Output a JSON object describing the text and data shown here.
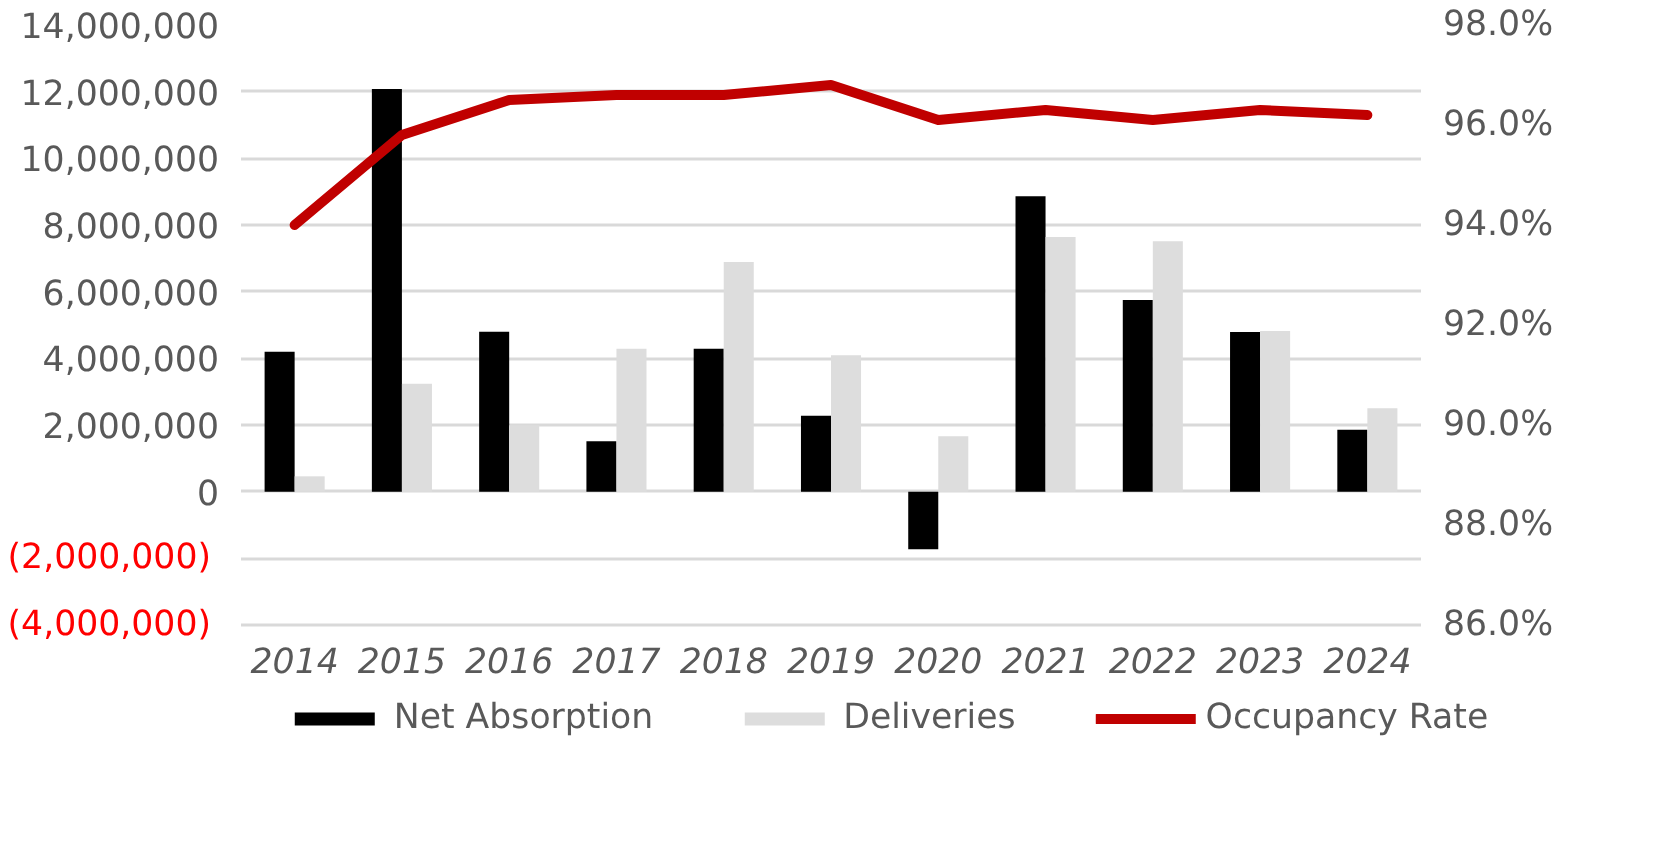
{
  "chart_data": {
    "type": "bar",
    "categories": [
      "2014",
      "2015",
      "2016",
      "2017",
      "2018",
      "2019",
      "2020",
      "2021",
      "2022",
      "2023",
      "2024"
    ],
    "series": [
      {
        "name": "Net Absorption",
        "color": "#000000",
        "values": [
          4200000,
          12080000,
          4800000,
          1510000,
          4290000,
          2280000,
          -1730000,
          8860000,
          5750000,
          4790000,
          1860000
        ]
      },
      {
        "name": "Deliveries",
        "color": "#dddddd",
        "values": [
          460000,
          3240000,
          1990000,
          4290000,
          6890000,
          4090000,
          1660000,
          7640000,
          7510000,
          4820000,
          2500000
        ]
      },
      {
        "name": "Occupancy Rate",
        "color": "#c00000",
        "type": "line",
        "axis": "y2",
        "values": [
          94.0,
          95.8,
          96.5,
          96.6,
          96.6,
          96.8,
          96.1,
          96.3,
          96.1,
          96.3,
          96.2
        ]
      }
    ],
    "ylim": [
      -4000000,
      14000000
    ],
    "yticks": [
      {
        "value": -4000000,
        "label": "(4,000,000)"
      },
      {
        "value": -2000000,
        "label": "(2,000,000)"
      },
      {
        "value": 0,
        "label": "0"
      },
      {
        "value": 2000000,
        "label": "2,000,000"
      },
      {
        "value": 4000000,
        "label": "4,000,000"
      },
      {
        "value": 6000000,
        "label": "6,000,000"
      },
      {
        "value": 8000000,
        "label": "8,000,000"
      },
      {
        "value": 10000000,
        "label": "10,000,000"
      },
      {
        "value": 12000000,
        "label": "12,000,000"
      },
      {
        "value": 14000000,
        "label": "14,000,000"
      }
    ],
    "y2lim": [
      86,
      98
    ],
    "y2ticks": [
      {
        "value": 86,
        "label": "86.0%"
      },
      {
        "value": 88,
        "label": "88.0%"
      },
      {
        "value": 90,
        "label": "90.0%"
      },
      {
        "value": 92,
        "label": "92.0%"
      },
      {
        "value": 94,
        "label": "94.0%"
      },
      {
        "value": 96,
        "label": "96.0%"
      },
      {
        "value": 98,
        "label": "98.0%"
      }
    ],
    "grid": "y",
    "legend": "bottom",
    "line_style": "solid"
  }
}
